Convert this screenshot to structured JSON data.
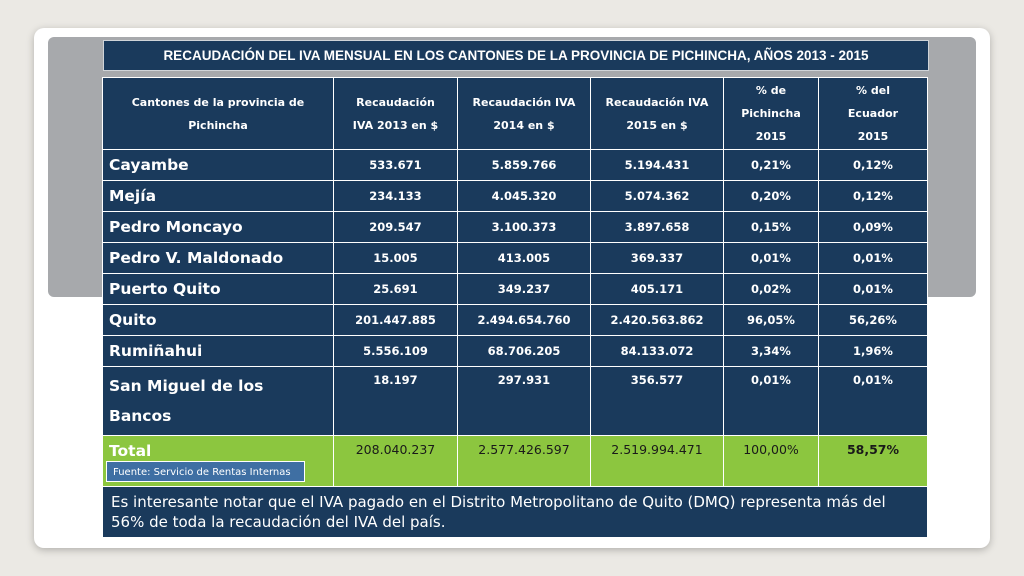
{
  "title": "RECAUDACIÓN DEL IVA MENSUAL EN LOS CANTONES DE LA PROVINCIA DE PICHINCHA, AÑOS  2013 - 2015",
  "table": {
    "headers": [
      [
        "Cantones de la provincia de",
        "Pichincha"
      ],
      [
        "Recaudación",
        "IVA 2013  en $"
      ],
      [
        "Recaudación IVA",
        "2014 en $"
      ],
      [
        "Recaudación IVA",
        "2015 en $"
      ],
      [
        "% de",
        "Pichincha",
        "2015"
      ],
      [
        "% del",
        "Ecuador",
        "2015"
      ]
    ],
    "rows": [
      {
        "canton": "Cayambe",
        "iva_2013": "533.671",
        "iva_2014": "5.859.766",
        "iva_2015": "5.194.431",
        "pct_pichincha": "0,21%",
        "pct_ecuador": "0,12%"
      },
      {
        "canton": "Mejía",
        "iva_2013": "234.133",
        "iva_2014": "4.045.320",
        "iva_2015": "5.074.362",
        "pct_pichincha": "0,20%",
        "pct_ecuador": "0,12%"
      },
      {
        "canton": "Pedro Moncayo",
        "iva_2013": "209.547",
        "iva_2014": "3.100.373",
        "iva_2015": "3.897.658",
        "pct_pichincha": "0,15%",
        "pct_ecuador": "0,09%"
      },
      {
        "canton": "Pedro V. Maldonado",
        "iva_2013": "15.005",
        "iva_2014": "413.005",
        "iva_2015": "369.337",
        "pct_pichincha": "0,01%",
        "pct_ecuador": "0,01%"
      },
      {
        "canton": "Puerto Quito",
        "iva_2013": "25.691",
        "iva_2014": "349.237",
        "iva_2015": "405.171",
        "pct_pichincha": "0,02%",
        "pct_ecuador": "0,01%"
      },
      {
        "canton": "Quito",
        "iva_2013": "201.447.885",
        "iva_2014": "2.494.654.760",
        "iva_2015": "2.420.563.862",
        "pct_pichincha": "96,05%",
        "pct_ecuador": "56,26%"
      },
      {
        "canton": "Rumiñahui",
        "iva_2013": "5.556.109",
        "iva_2014": "68.706.205",
        "iva_2015": "84.133.072",
        "pct_pichincha": "3,34%",
        "pct_ecuador": "1,96%"
      },
      {
        "canton_line1": "San Miguel de los",
        "canton_line2": "Bancos",
        "iva_2013": "18.197",
        "iva_2014": "297.931",
        "iva_2015": "356.577",
        "pct_pichincha": "0,01%",
        "pct_ecuador": "0,01%"
      }
    ],
    "total": {
      "label": "Total",
      "iva_2013": "208.040.237",
      "iva_2014": "2.577.426.597",
      "iva_2015": "2.519.994.471",
      "pct_pichincha": "100,00%",
      "pct_ecuador": "58,57%"
    }
  },
  "source": "Fuente: Servicio de Rentas Internas",
  "note": "Es interesante notar que el IVA pagado en el Distrito Metropolitano de Quito (DMQ) representa más del 56% de toda la recaudación del IVA del país.",
  "colors": {
    "header_bg": "#1a3a5c",
    "total_bg": "#8cc63f",
    "source_bg": "#3f6fa3"
  }
}
